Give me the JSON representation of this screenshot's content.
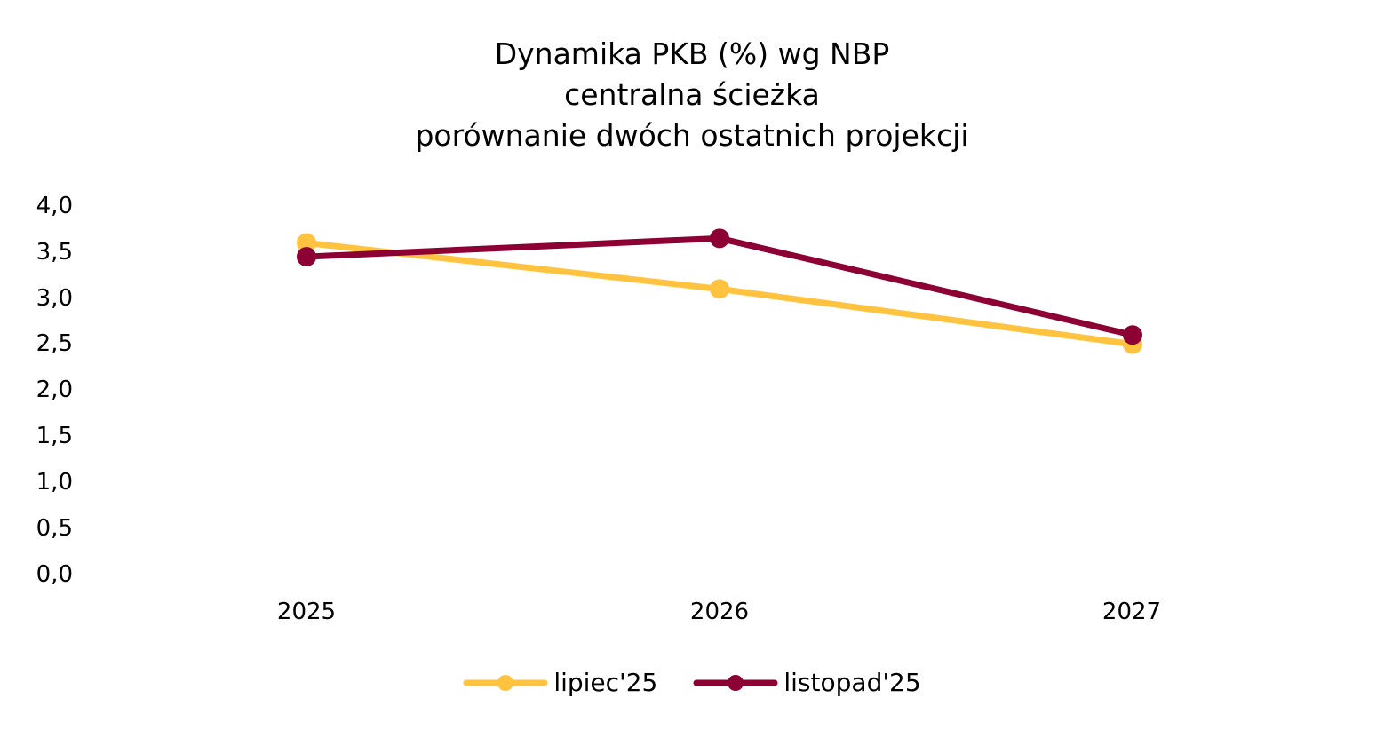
{
  "chart_data": {
    "type": "line",
    "title": "Dynamika PKB (%) wg NBP",
    "subtitle": [
      "centralna ścieżka",
      "porównanie dwóch ostatnich projekcji"
    ],
    "xlabel": "",
    "ylabel": "",
    "categories": [
      "2025",
      "2026",
      "2027"
    ],
    "series": [
      {
        "name": "lipiec'25",
        "color": "#FFC33F",
        "values": [
          3.6,
          3.1,
          2.5
        ]
      },
      {
        "name": "listopad'25",
        "color": "#8C0033",
        "values": [
          3.45,
          3.65,
          2.6
        ]
      }
    ],
    "ylim": [
      0,
      4.0
    ],
    "yticks": [
      "4,0",
      "3,5",
      "3,0",
      "2,5",
      "2,0",
      "1,5",
      "1,0",
      "0,5",
      "0,0"
    ],
    "grid": false,
    "legend_position": "bottom"
  }
}
